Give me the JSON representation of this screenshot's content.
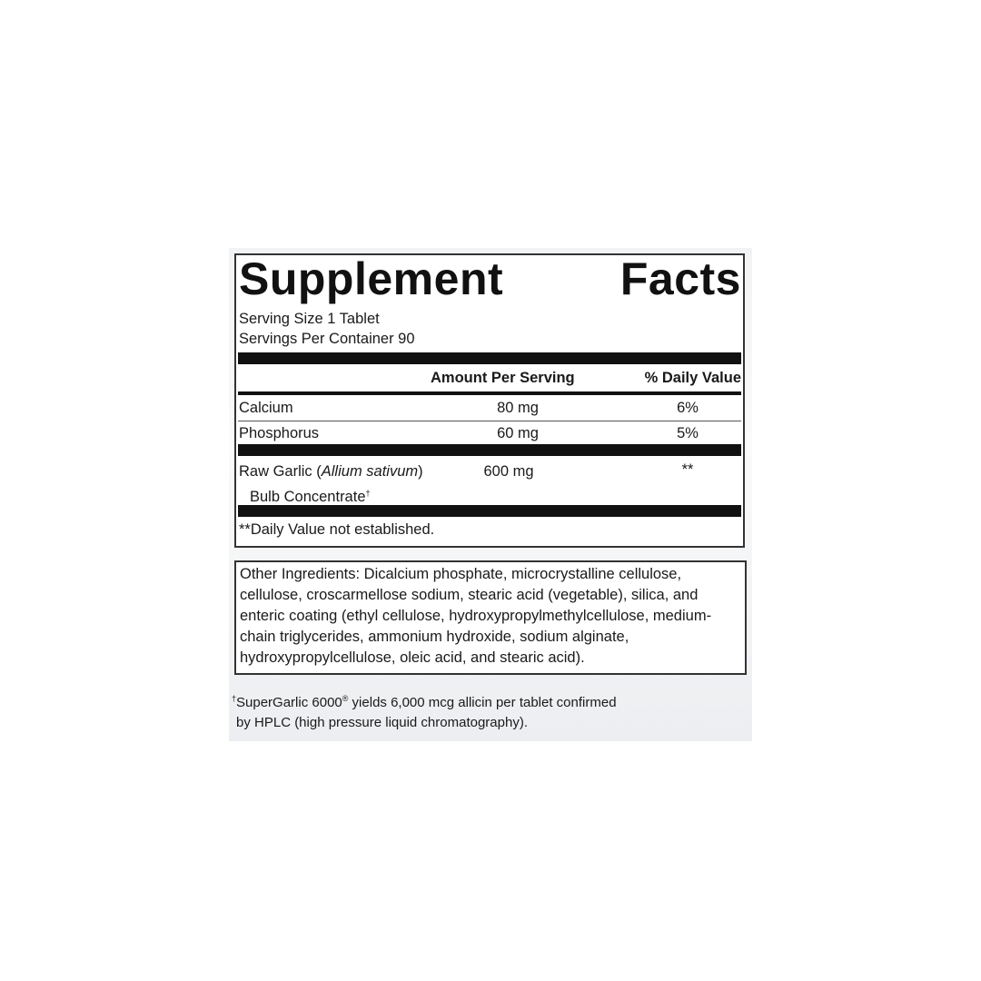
{
  "facts": {
    "title_word1": "Supplement",
    "title_word2": "Facts",
    "serving_size": "Serving Size 1 Tablet",
    "servings_per_container": "Servings Per Container 90",
    "col_amount": "Amount Per Serving",
    "col_dv": "% Daily Value",
    "rows": [
      {
        "name": "Calcium",
        "amount": "80 mg",
        "dv": "6%"
      },
      {
        "name": "Phosphorus",
        "amount": "60 mg",
        "dv": "5%"
      },
      {
        "name_prefix": "Raw Garlic (",
        "name_italic": "Allium sativum",
        "name_suffix": ")",
        "name_line2": "Bulb Concentrate",
        "name_mark": "†",
        "amount": "600 mg",
        "dv": "**"
      }
    ],
    "dv_note": "**Daily Value not established."
  },
  "other_ingredients": "Other Ingredients: Dicalcium phosphate, microcrystalline cellulose, cellulose, croscarmellose sodium, stearic acid (vegetable), silica, and enteric coating (ethyl cellulose, hydroxypropylmethylcellulose, medium-chain triglycerides, ammonium hydroxide, sodium alginate, hydroxypropylcellulose, oleic acid, and stearic acid).",
  "footnote": {
    "mark": "†",
    "brand": "SuperGarlic 6000",
    "reg": "®",
    "line1_rest": " yields 6,000 mcg allicin per tablet confirmed",
    "line2": "by HPLC (high pressure liquid chromatography)."
  }
}
